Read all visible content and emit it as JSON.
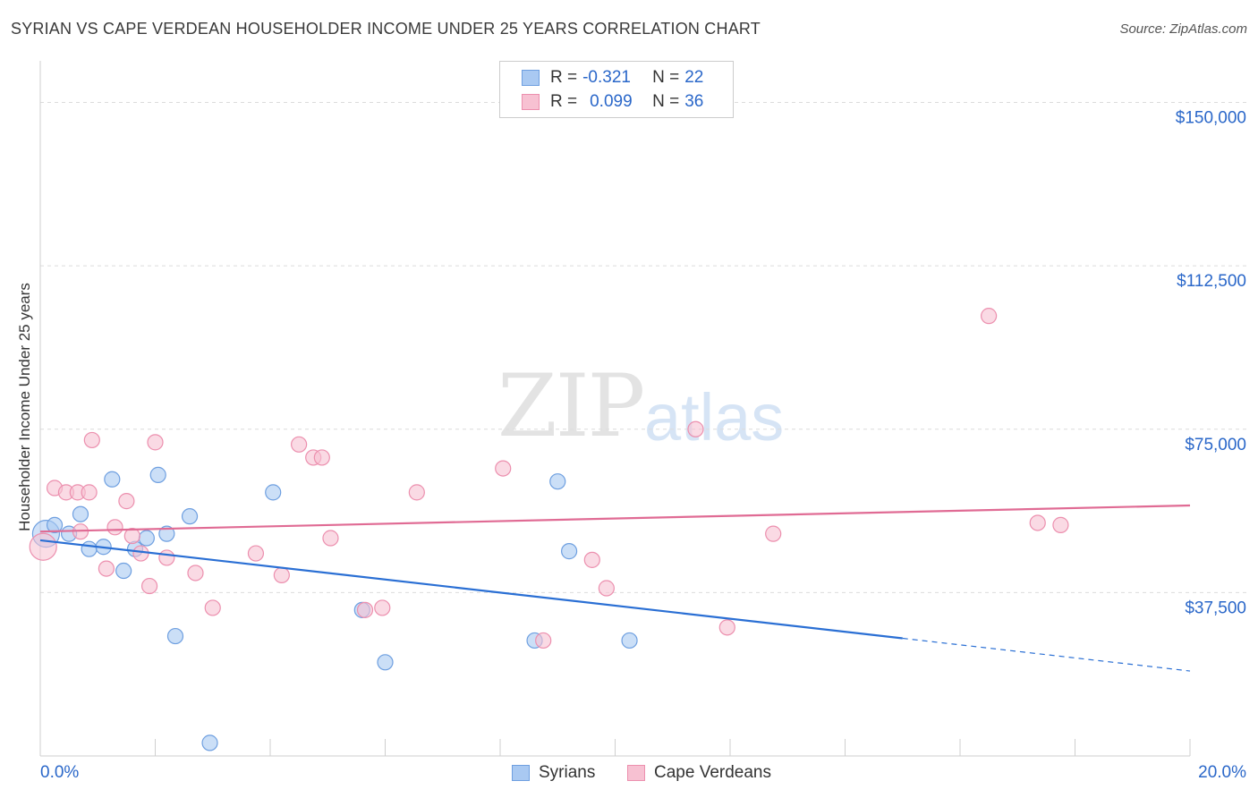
{
  "title": "SYRIAN VS CAPE VERDEAN HOUSEHOLDER INCOME UNDER 25 YEARS CORRELATION CHART",
  "source": "Source: ZipAtlas.com",
  "watermark": {
    "zip": "ZIP",
    "atlas": "atlas"
  },
  "legend": {
    "rows": [
      {
        "r_label": "R =",
        "r_value": "-0.321",
        "n_label": "N =",
        "n_value": "22",
        "color": "#a9c9f2",
        "border": "#6e9fe0"
      },
      {
        "r_label": "R =",
        "r_value": "0.099",
        "n_label": "N =",
        "n_value": "36",
        "color": "#f7c1d2",
        "border": "#ec8fae"
      }
    ]
  },
  "bottom_legend": {
    "syrians": "Syrians",
    "cape_verdeans": "Cape Verdeans"
  },
  "colors": {
    "syrian_fill": "#a9c9f2",
    "syrian_stroke": "#6e9fe0",
    "syrian_line": "#2a6fd4",
    "cv_fill": "#f7c1d2",
    "cv_stroke": "#ec8fae",
    "cv_line": "#e06b94",
    "grid": "#dcdcdc",
    "tick_label": "#2a67c9"
  },
  "chart_data": {
    "type": "scatter",
    "title": "SYRIAN VS CAPE VERDEAN HOUSEHOLDER INCOME UNDER 25 YEARS CORRELATION CHART",
    "xlabel": "",
    "ylabel": "Householder Income Under 25 years",
    "xlim": [
      0,
      20
    ],
    "ylim": [
      0,
      157500
    ],
    "x_tick_labels": [
      "0.0%",
      "20.0%"
    ],
    "y_ticks": [
      37500,
      75000,
      112500,
      150000
    ],
    "y_tick_labels": [
      "$37,500",
      "$75,000",
      "$112,500",
      "$150,000"
    ],
    "grid": true,
    "legend_position": "top-center",
    "series": [
      {
        "name": "Syrians",
        "points": [
          [
            0.1,
            51000
          ],
          [
            0.25,
            53000
          ],
          [
            0.5,
            51000
          ],
          [
            0.7,
            55500
          ],
          [
            0.85,
            47500
          ],
          [
            1.1,
            48000
          ],
          [
            1.25,
            63500
          ],
          [
            1.45,
            42500
          ],
          [
            1.65,
            47500
          ],
          [
            1.85,
            50000
          ],
          [
            2.05,
            64500
          ],
          [
            2.2,
            51000
          ],
          [
            2.35,
            27500
          ],
          [
            2.6,
            55000
          ],
          [
            2.95,
            3000
          ],
          [
            4.05,
            60500
          ],
          [
            5.6,
            33500
          ],
          [
            6.0,
            21500
          ],
          [
            8.6,
            26500
          ],
          [
            9.0,
            63000
          ],
          [
            9.2,
            47000
          ],
          [
            10.25,
            26500
          ]
        ],
        "trend": {
          "x": [
            0.0,
            15.0
          ],
          "y": [
            49500,
            27000
          ],
          "dashed_to": [
            20.0,
            19500
          ]
        }
      },
      {
        "name": "Cape Verdeans",
        "points": [
          [
            0.05,
            48000
          ],
          [
            0.25,
            61500
          ],
          [
            0.45,
            60500
          ],
          [
            0.65,
            60500
          ],
          [
            0.7,
            51500
          ],
          [
            0.85,
            60500
          ],
          [
            0.9,
            72500
          ],
          [
            1.15,
            43000
          ],
          [
            1.3,
            52500
          ],
          [
            1.5,
            58500
          ],
          [
            1.6,
            50500
          ],
          [
            1.75,
            46500
          ],
          [
            1.9,
            39000
          ],
          [
            2.0,
            72000
          ],
          [
            2.2,
            45500
          ],
          [
            2.7,
            42000
          ],
          [
            3.0,
            34000
          ],
          [
            3.75,
            46500
          ],
          [
            4.2,
            41500
          ],
          [
            4.5,
            71500
          ],
          [
            4.75,
            68500
          ],
          [
            4.9,
            68500
          ],
          [
            5.05,
            50000
          ],
          [
            5.65,
            33500
          ],
          [
            5.95,
            34000
          ],
          [
            6.55,
            60500
          ],
          [
            8.05,
            66000
          ],
          [
            8.75,
            26500
          ],
          [
            9.6,
            45000
          ],
          [
            9.85,
            38500
          ],
          [
            11.4,
            75000
          ],
          [
            11.95,
            29500
          ],
          [
            12.75,
            51000
          ],
          [
            16.5,
            101000
          ],
          [
            17.35,
            53500
          ],
          [
            17.75,
            53000
          ]
        ],
        "trend": {
          "x": [
            0.0,
            20.0
          ],
          "y": [
            51500,
            57500
          ]
        }
      }
    ]
  }
}
